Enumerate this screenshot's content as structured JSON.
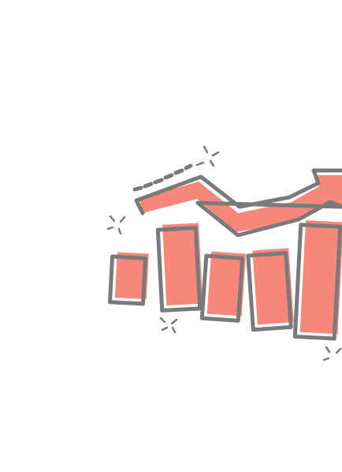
{
  "illustration": {
    "icon": "growth-chart-arrow-icon",
    "colors": {
      "background": "#ffffff",
      "accent": "#f7877a",
      "outline": "#7a7a7a"
    },
    "bars": [
      {
        "name": "bar-1",
        "level": 0.35
      },
      {
        "name": "bar-2",
        "level": 0.62
      },
      {
        "name": "bar-3",
        "level": 0.48
      },
      {
        "name": "bar-4",
        "level": 0.57
      },
      {
        "name": "bar-5",
        "level": 0.86
      }
    ]
  }
}
